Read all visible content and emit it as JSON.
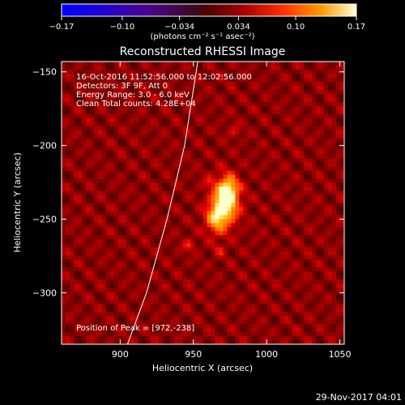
{
  "chart_data": {
    "type": "heatmap",
    "title": "Reconstructed RHESSI Image",
    "xlabel": "Heliocentric X (arcsec)",
    "ylabel": "Heliocentric Y (arcsec)",
    "xlim": [
      860,
      1053
    ],
    "ylim": [
      -335,
      -143
    ],
    "x_ticks": [
      900,
      950,
      1000,
      1050
    ],
    "y_ticks": [
      -150,
      -200,
      -250,
      -300
    ],
    "x_tick_labels": [
      "900",
      "950",
      "1000",
      "1050"
    ],
    "y_tick_labels": [
      "−150",
      "−200",
      "−250",
      "−300"
    ],
    "colorbar": {
      "range": [
        -0.17,
        0.17
      ],
      "ticks": [
        -0.17,
        -0.1,
        -0.034,
        0.034,
        0.1,
        0.17
      ],
      "tick_labels": [
        "−0.17",
        "−0.10",
        "−0.034",
        "0.034",
        "0.10",
        "0.17"
      ],
      "unit_label": "(photons cm⁻² s⁻¹ asec⁻²)"
    },
    "info_lines": [
      "16-Oct-2016 11:52:56.000 to 12:02:56.000",
      "Detectors: 3F 9F, Att 0",
      "Energy Range: 3.0 - 6.0 keV",
      "Clean    Total counts: 4.28E+04"
    ],
    "peak_label": "Position of Peak = [972,-238]",
    "peak": [
      972,
      -238
    ],
    "sources": [
      {
        "x": 972,
        "y": -238,
        "sx": 6,
        "sy": 10,
        "amp": 0.17
      },
      {
        "x": 965,
        "y": -250,
        "sx": 5,
        "sy": 7,
        "amp": 0.09
      },
      {
        "x": 975,
        "y": -228,
        "sx": 4,
        "sy": 5,
        "amp": 0.06
      },
      {
        "x": 947,
        "y": -268,
        "sx": 3,
        "sy": 3,
        "amp": 0.04
      },
      {
        "x": 968,
        "y": -271,
        "sx": 3,
        "sy": 3,
        "amp": 0.03
      },
      {
        "x": 978,
        "y": -190,
        "sx": 3,
        "sy": 3,
        "amp": 0.03
      },
      {
        "x": 960,
        "y": -225,
        "sx": 3,
        "sy": 3,
        "amp": 0.025
      }
    ],
    "limb_curve": [
      [
        905,
        -335
      ],
      [
        918,
        -300
      ],
      [
        932,
        -250
      ],
      [
        944,
        -200
      ],
      [
        953,
        -143
      ]
    ]
  },
  "footer_timestamp": "29-Nov-2017 04:01"
}
